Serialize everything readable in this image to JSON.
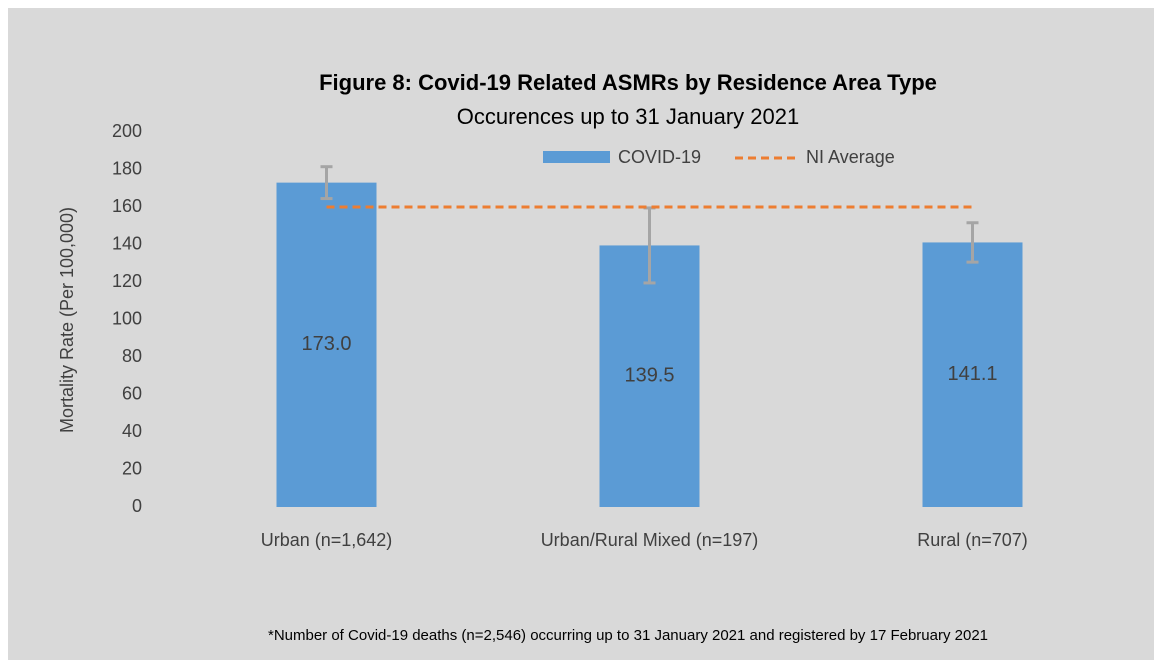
{
  "chart_data": {
    "type": "bar",
    "title": "Figure 8: Covid-19 Related ASMRs by Residence Area Type",
    "subtitle": "Occurences up to 31 January 2021",
    "y_label": "Mortality Rate (Per 100,000)",
    "categories": [
      "Urban (n=1,642)",
      "Urban/Rural Mixed (n=197)",
      "Rural (n=707)"
    ],
    "series": [
      {
        "name": "COVID-19",
        "color": "#5b9bd5",
        "values": [
          173.0,
          139.5,
          141.1
        ],
        "value_labels": [
          "173.0",
          "139.5",
          "141.1"
        ],
        "errors": [
          8.5,
          20,
          10.5
        ]
      }
    ],
    "reference_line": {
      "name": "NI Average",
      "value": 160,
      "color": "#ed7d31"
    },
    "ylim": [
      0,
      200
    ],
    "yticks": [
      0,
      20,
      40,
      60,
      80,
      100,
      120,
      140,
      160,
      180,
      200
    ],
    "grid": false,
    "legend": "top",
    "note": "*Number of Covid-19 deaths (n=2,546) occurring up to 31 January 2021 and registered by 17 February 2021"
  }
}
